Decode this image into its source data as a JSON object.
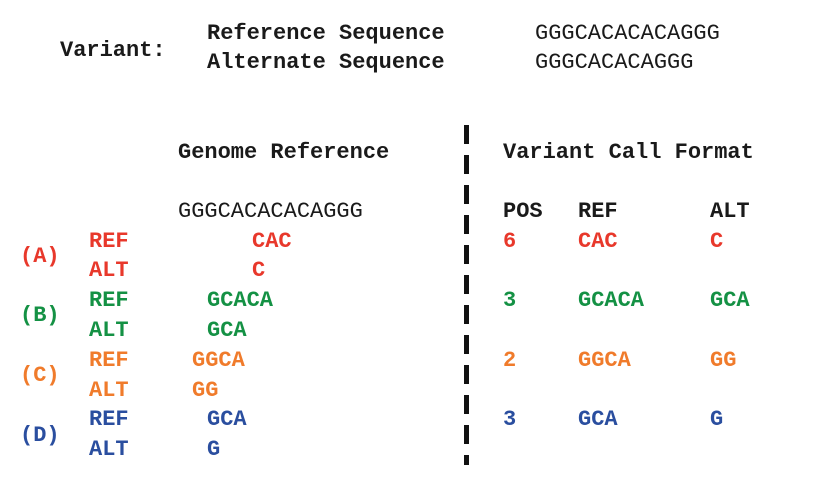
{
  "header": {
    "label": "Variant:",
    "reference_label": "Reference Sequence",
    "reference_value": "GGGCACACACAGGG",
    "alternate_label": "Alternate Sequence",
    "alternate_value": "GGGCACACAGGG"
  },
  "left_panel": {
    "title": "Genome Reference",
    "sequence": "GGGCACACACAGGG"
  },
  "right_panel": {
    "title": "Variant Call Format",
    "columns": {
      "pos": "POS",
      "ref": "REF",
      "alt": "ALT"
    }
  },
  "colors": {
    "A": "#e8382b",
    "B": "#149144",
    "C": "#f07b2b",
    "D": "#2a4e9f"
  },
  "cases": [
    {
      "id": "A",
      "label": "(A)",
      "ref_label": "REF",
      "alt_label": "ALT",
      "ref_seq": "CAC",
      "alt_seq": "C",
      "pos": "6",
      "vcf_ref": "CAC",
      "vcf_alt": "C"
    },
    {
      "id": "B",
      "label": "(B)",
      "ref_label": "REF",
      "alt_label": "ALT",
      "ref_seq": "GCACA",
      "alt_seq": "GCA",
      "pos": "3",
      "vcf_ref": "GCACA",
      "vcf_alt": "GCA"
    },
    {
      "id": "C",
      "label": "(C)",
      "ref_label": "REF",
      "alt_label": "ALT",
      "ref_seq": "GGCA",
      "alt_seq": "GG",
      "pos": "2",
      "vcf_ref": "GGCA",
      "vcf_alt": "GG"
    },
    {
      "id": "D",
      "label": "(D)",
      "ref_label": "REF",
      "alt_label": "ALT",
      "ref_seq": "GCA",
      "alt_seq": "G",
      "pos": "3",
      "vcf_ref": "GCA",
      "vcf_alt": "G"
    }
  ]
}
